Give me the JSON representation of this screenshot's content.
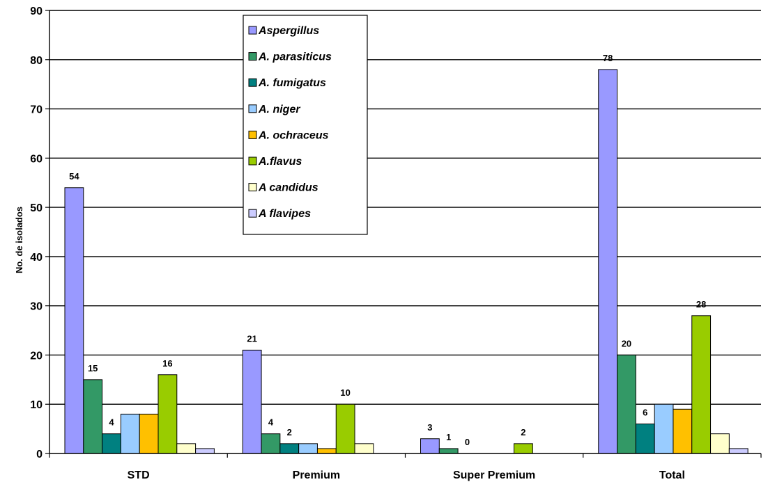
{
  "chart_data": {
    "type": "bar",
    "title": "",
    "xlabel": "",
    "ylabel": "No. de isolados",
    "ylim": [
      0,
      90
    ],
    "yticks": [
      0,
      10,
      20,
      30,
      40,
      50,
      60,
      70,
      80,
      90
    ],
    "grid": true,
    "legend_placement": "top-center",
    "categories": [
      "STD",
      "Premium",
      "Super Premium",
      "Total"
    ],
    "series": [
      {
        "name": "Aspergillus",
        "color": "#9999ff",
        "values": [
          54,
          21,
          3,
          78
        ],
        "labels": [
          "54",
          "21",
          "3",
          "78"
        ]
      },
      {
        "name": "A. parasiticus",
        "color": "#339966",
        "values": [
          15,
          4,
          1,
          20
        ],
        "labels": [
          "15",
          "4",
          "1",
          "20"
        ]
      },
      {
        "name": "A. fumigatus",
        "color": "#008080",
        "values": [
          4,
          2,
          0,
          6
        ],
        "labels": [
          "4",
          "2",
          "0",
          "6"
        ]
      },
      {
        "name": "A. niger",
        "color": "#99ccff",
        "values": [
          8,
          2,
          0,
          10
        ],
        "labels": [
          "",
          "",
          "",
          ""
        ]
      },
      {
        "name": "A. ochraceus",
        "color": "#ffc000",
        "values": [
          8,
          1,
          0,
          9
        ],
        "labels": [
          "",
          "",
          "",
          ""
        ]
      },
      {
        "name": "A.flavus",
        "color": "#99cc00",
        "values": [
          16,
          10,
          2,
          28
        ],
        "labels": [
          "16",
          "10",
          "2",
          "28"
        ]
      },
      {
        "name": "A candidus",
        "color": "#ffffcc",
        "values": [
          2,
          2,
          0,
          4
        ],
        "labels": [
          "",
          "",
          "",
          ""
        ]
      },
      {
        "name": "A flavipes",
        "color": "#ccccff",
        "values": [
          1,
          0,
          0,
          1
        ],
        "labels": [
          "",
          "",
          "",
          ""
        ]
      }
    ]
  }
}
